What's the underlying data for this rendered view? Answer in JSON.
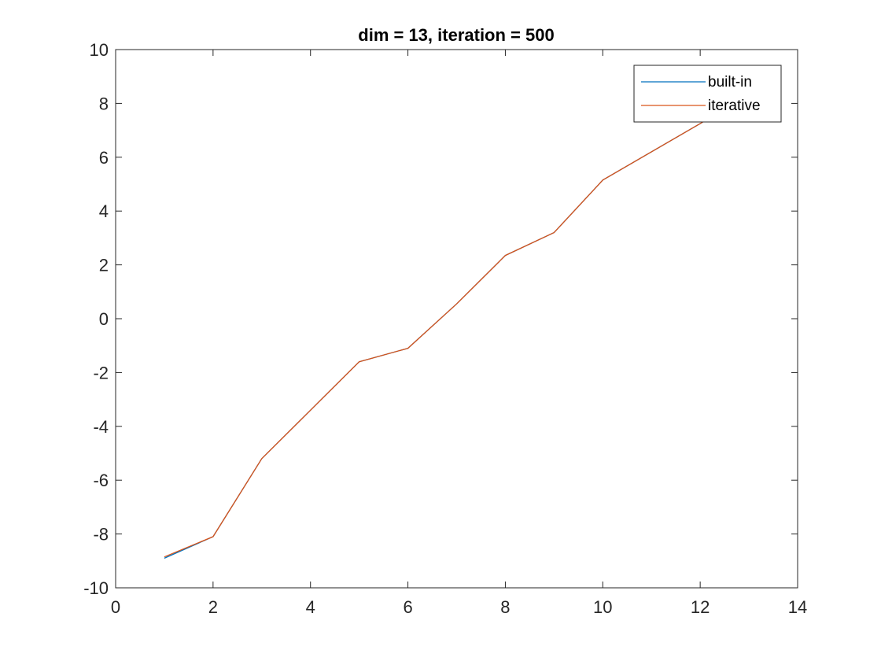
{
  "chart_data": {
    "type": "line",
    "title": "dim = 13, iteration = 500",
    "xlabel": "",
    "ylabel": "",
    "xlim": [
      0,
      14
    ],
    "ylim": [
      -10,
      10
    ],
    "xticks": [
      0,
      2,
      4,
      6,
      8,
      10,
      12,
      14
    ],
    "yticks": [
      -10,
      -8,
      -6,
      -4,
      -2,
      0,
      2,
      4,
      6,
      8,
      10
    ],
    "grid": false,
    "legend_position": "top-right",
    "x": [
      1,
      2,
      3,
      4,
      5,
      6,
      7,
      8,
      9,
      10,
      11,
      12,
      13
    ],
    "series": [
      {
        "name": "built-in",
        "color": "#0072BD",
        "values": [
          -8.9,
          -8.1,
          -5.2,
          -3.4,
          -1.6,
          -1.1,
          0.55,
          2.35,
          3.2,
          5.15,
          6.2,
          7.25,
          8.35
        ]
      },
      {
        "name": "iterative",
        "color": "#D95319",
        "values": [
          -8.85,
          -8.1,
          -5.2,
          -3.4,
          -1.6,
          -1.1,
          0.55,
          2.35,
          3.2,
          5.15,
          6.2,
          7.25,
          8.35
        ]
      }
    ]
  }
}
